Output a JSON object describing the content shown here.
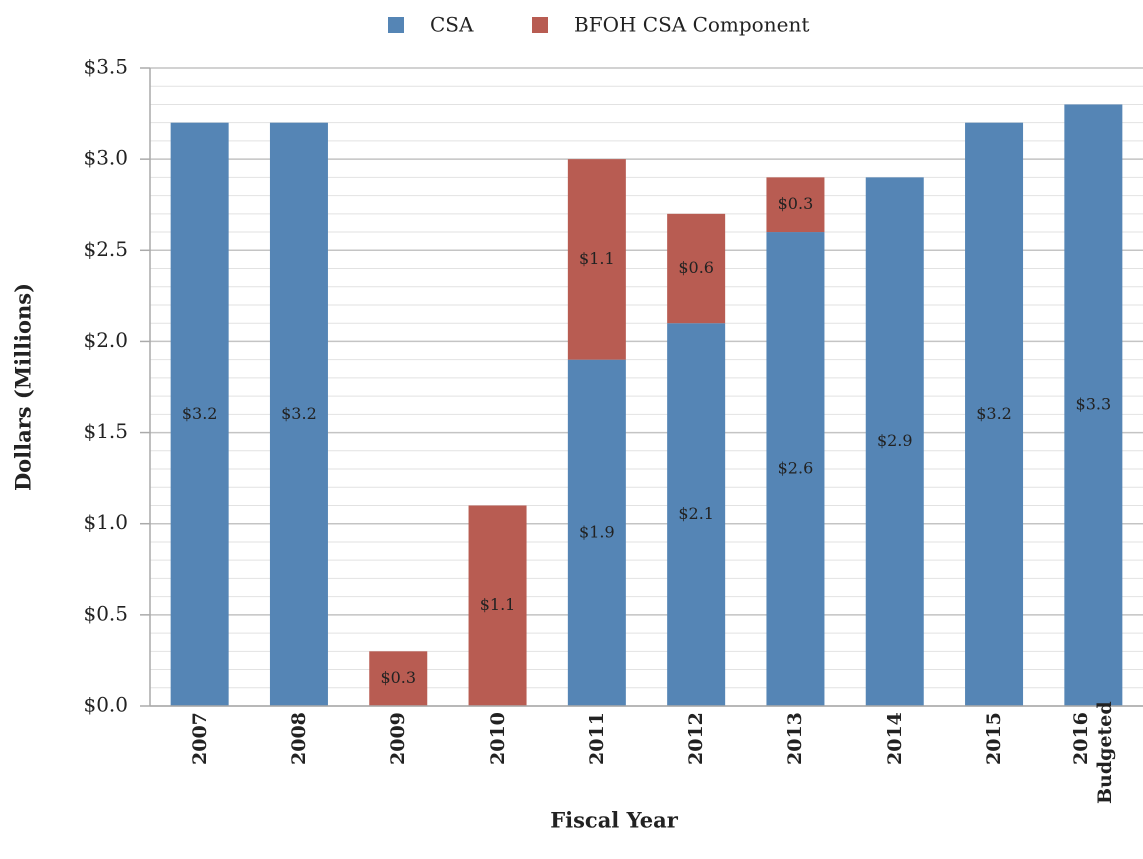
{
  "chart_data": {
    "type": "stacked_bar",
    "categories": [
      "2007",
      "2008",
      "2009",
      "2010",
      "2011",
      "2012",
      "2013",
      "2014",
      "2015",
      "2016\nBudgeted"
    ],
    "series": [
      {
        "name": "CSA",
        "color": "#5585b5",
        "values": [
          3.2,
          3.2,
          null,
          null,
          1.9,
          2.1,
          2.6,
          2.9,
          3.2,
          3.3
        ],
        "value_labels": [
          "$3.2",
          "$3.2",
          null,
          null,
          "$1.9",
          "$2.1",
          "$2.6",
          "$2.9",
          "$3.2",
          "$3.3"
        ]
      },
      {
        "name": "BFOH CSA Component",
        "color": "#b85c52",
        "values": [
          null,
          null,
          0.3,
          1.1,
          1.1,
          0.6,
          0.3,
          null,
          null,
          null
        ],
        "value_labels": [
          null,
          null,
          "$0.3",
          "$1.1",
          "$1.1",
          "$0.6",
          "$0.3",
          null,
          null,
          null
        ]
      }
    ],
    "ylim": [
      0,
      3.5
    ],
    "yticks": [
      {
        "value": 0,
        "label": "$0.0"
      },
      {
        "value": 0.5,
        "label": "$0.5"
      },
      {
        "value": 1,
        "label": "$1.0"
      },
      {
        "value": 1.5,
        "label": "$1.5"
      },
      {
        "value": 2,
        "label": "$2.0"
      },
      {
        "value": 2.5,
        "label": "$2.5"
      },
      {
        "value": 3,
        "label": "$3.0"
      },
      {
        "value": 3.5,
        "label": "$3.5"
      }
    ],
    "minor_grid_step": 0.1,
    "grid": true,
    "legend": "top",
    "ylabel": "Dollars (Millions)",
    "xlabel": "Fiscal Year"
  }
}
